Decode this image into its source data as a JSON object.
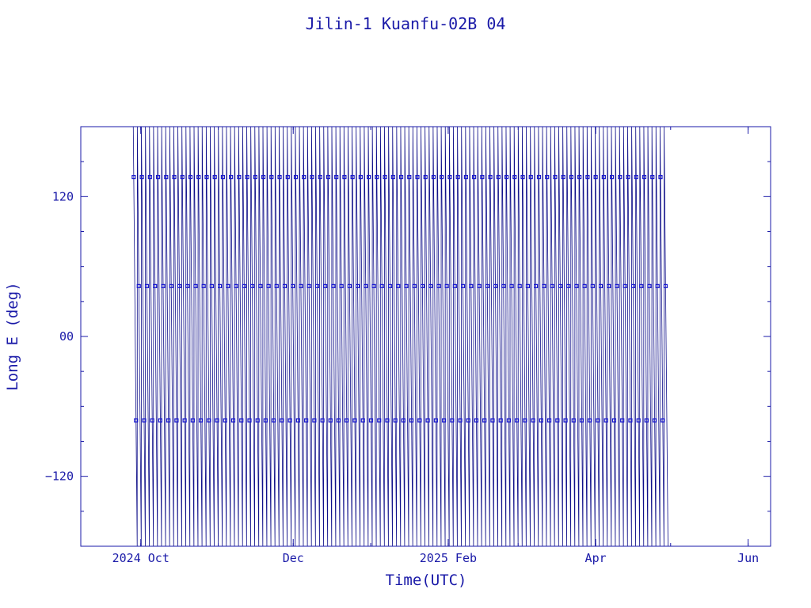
{
  "chart_data": {
    "type": "line",
    "title": "Jilin-1 Kuanfu-02B 04",
    "xlabel": "Time(UTC)",
    "ylabel": "Long E (deg)",
    "xlim": [
      "2024-09-07",
      "2025-06-10"
    ],
    "ylim": [
      -180,
      180
    ],
    "x_ticks": [
      {
        "date": "2024-10-01",
        "label": "2024 Oct"
      },
      {
        "date": "2024-12-01",
        "label": "Dec"
      },
      {
        "date": "2025-02-01",
        "label": "2025 Feb"
      },
      {
        "date": "2025-04-01",
        "label": "Apr"
      },
      {
        "date": "2025-06-01",
        "label": "Jun"
      }
    ],
    "y_ticks": [
      {
        "value": -120,
        "label": "−120"
      },
      {
        "value": 0,
        "label": "00"
      },
      {
        "value": 120,
        "label": "120"
      }
    ],
    "grid": false,
    "legend": "none",
    "series": [
      {
        "x_start": "2024-09-28",
        "x_end": "2025-04-30",
        "y_start": 180,
        "y_end": -180,
        "wraps": 132,
        "marker": "square",
        "color": "#1a1ad0"
      }
    ],
    "colors": {
      "axis": "#1a1aa8",
      "line": "#10108a",
      "marker": "#1a1ad0"
    }
  }
}
